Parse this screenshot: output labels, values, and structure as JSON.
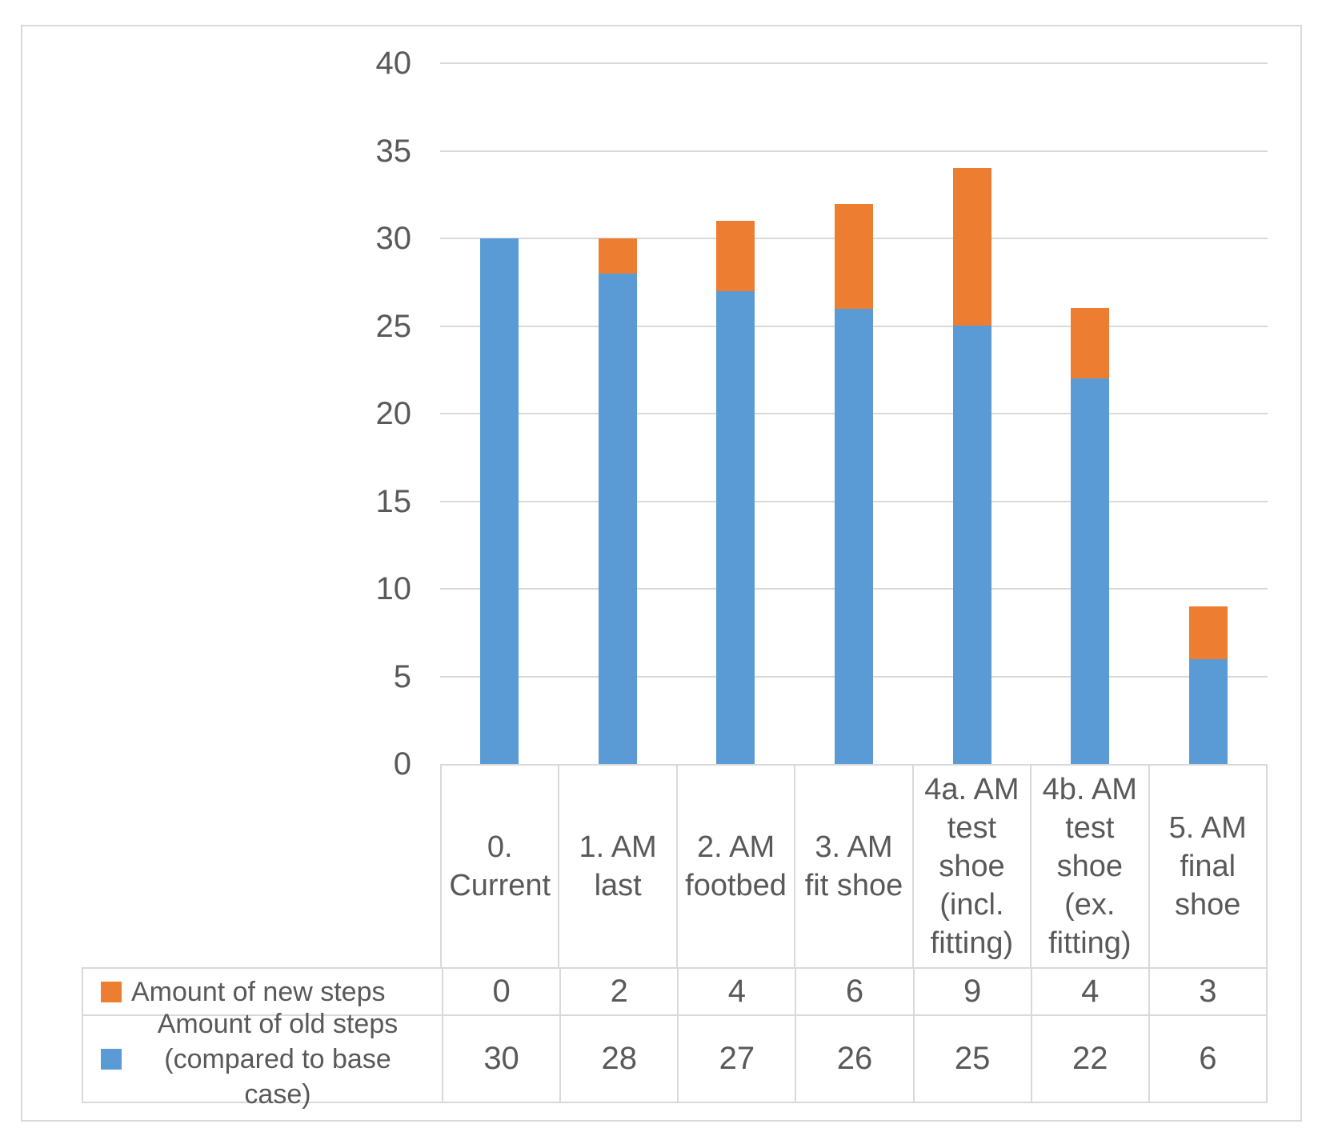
{
  "chart_data": {
    "type": "bar",
    "stacked": true,
    "categories": [
      "0. Current",
      "1. AM last",
      "2. AM footbed",
      "3. AM fit shoe",
      "4a. AM test shoe (incl. fitting)",
      "4b. AM test shoe (ex. fitting)",
      "5. AM final shoe"
    ],
    "series": [
      {
        "name": "Amount of new steps",
        "color": "#ED7D31",
        "values": [
          0,
          2,
          4,
          6,
          9,
          4,
          3
        ]
      },
      {
        "name": "Amount of old steps\n(compared to base case)",
        "color": "#5B9BD5",
        "values": [
          30,
          28,
          27,
          26,
          25,
          22,
          6
        ]
      }
    ],
    "ylim": [
      0,
      40
    ],
    "yticks": [
      0,
      5,
      10,
      15,
      20,
      25,
      30,
      35,
      40
    ],
    "grid": true,
    "legend_position": "data-table-below-left",
    "xlabel": "",
    "ylabel": ""
  },
  "colors": {
    "new_steps": "#ED7D31",
    "old_steps": "#5B9BD5",
    "gridline": "#D9D9D9",
    "table_border": "#D9D9D9",
    "text": "#595959",
    "background": "#FFFFFF"
  }
}
